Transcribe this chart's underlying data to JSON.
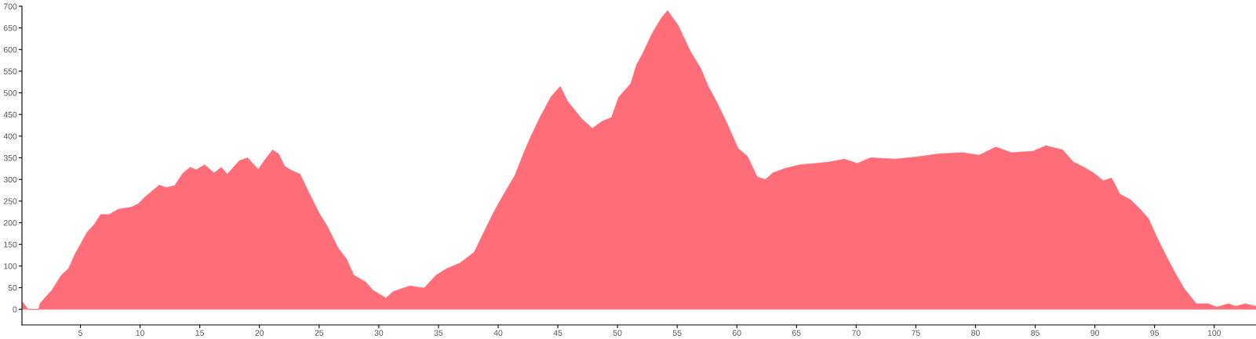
{
  "chart_data": {
    "type": "area",
    "x": [
      0.15,
      0.6,
      1.5,
      1.6,
      2.1,
      2.6,
      3.4,
      4.0,
      4.55,
      5.0,
      5.55,
      6.1,
      6.7,
      7.4,
      8.15,
      9.3,
      9.85,
      10.4,
      11.6,
      12.2,
      12.9,
      13.6,
      14.2,
      14.7,
      15.4,
      16.2,
      16.8,
      17.3,
      18.3,
      19.0,
      19.9,
      20.5,
      21.1,
      21.6,
      22.1,
      22.6,
      23.4,
      24.1,
      25.0,
      25.7,
      26.6,
      27.3,
      27.9,
      28.9,
      29.5,
      30.6,
      31.2,
      32.6,
      33.8,
      34.8,
      35.7,
      36.8,
      38.0,
      38.8,
      39.7,
      40.6,
      41.4,
      42.2,
      42.8,
      43.5,
      44.4,
      45.2,
      45.8,
      47.0,
      47.9,
      48.7,
      49.5,
      50.1,
      51.1,
      51.6,
      52.1,
      52.9,
      53.7,
      54.2,
      55.1,
      56.1,
      57.0,
      57.6,
      58.4,
      59.2,
      60.1,
      60.9,
      61.7,
      62.4,
      63.0,
      64.0,
      65.3,
      66.6,
      67.7,
      69.0,
      70.1,
      71.2,
      73.3,
      75.3,
      76.9,
      78.9,
      80.3,
      81.7,
      83.0,
      84.8,
      85.9,
      87.3,
      88.2,
      89.1,
      89.9,
      90.7,
      91.4,
      92.1,
      93.0,
      93.9,
      94.5,
      95.2,
      96.0,
      96.7,
      97.5,
      98.5,
      99.5,
      100.2,
      101.2,
      101.8,
      102.6,
      103.5
    ],
    "series": [
      {
        "color": "#ff6e78",
        "values": [
          17,
          0,
          -1,
          13,
          29,
          44,
          79,
          94,
          128,
          150,
          178,
          194,
          219,
          219,
          231,
          236,
          244,
          259,
          287,
          281,
          286,
          315,
          328,
          322,
          334,
          315,
          328,
          312,
          343,
          350,
          323,
          347,
          368,
          359,
          331,
          322,
          312,
          272,
          222,
          191,
          141,
          116,
          79,
          63,
          44,
          26,
          41,
          54,
          49,
          79,
          94,
          107,
          132,
          178,
          228,
          272,
          309,
          365,
          403,
          443,
          490,
          515,
          481,
          440,
          418,
          434,
          443,
          490,
          521,
          565,
          590,
          637,
          674,
          690,
          655,
          596,
          555,
          515,
          474,
          428,
          372,
          353,
          306,
          300,
          315,
          325,
          334,
          337,
          340,
          347,
          337,
          350,
          347,
          353,
          359,
          362,
          356,
          375,
          362,
          365,
          378,
          368,
          340,
          328,
          315,
          297,
          303,
          266,
          253,
          228,
          209,
          166,
          122,
          85,
          47,
          13,
          13,
          5,
          13,
          7,
          13,
          7
        ]
      }
    ],
    "xlim": [
      0.1,
      103.5
    ],
    "ylim": [
      -36,
      700
    ],
    "xticks": [
      5,
      10,
      15,
      20,
      25,
      30,
      35,
      40,
      45,
      50,
      55,
      60,
      65,
      70,
      75,
      80,
      85,
      90,
      95,
      100
    ],
    "yticks": [
      0,
      50,
      100,
      150,
      200,
      250,
      300,
      350,
      400,
      450,
      500,
      550,
      600,
      650,
      700
    ],
    "grid": false,
    "legend": false
  }
}
